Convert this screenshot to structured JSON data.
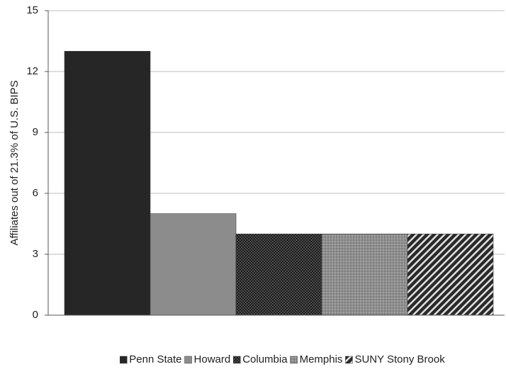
{
  "chart_data": {
    "type": "bar",
    "categories": [
      "Penn State",
      "Howard",
      "Columbia",
      "Memphis",
      "SUNY Stony Brook"
    ],
    "values": [
      13,
      5,
      4,
      4,
      4
    ],
    "title": "",
    "xlabel": "",
    "ylabel": "Affiliates out of 21.3% of U.S. BIPS",
    "ylim": [
      0,
      15
    ],
    "yticks": [
      0,
      3,
      6,
      9,
      12,
      15
    ],
    "grid": true,
    "legend_position": "bottom",
    "series_fills": [
      "solid-dark",
      "solid-gray",
      "dark-checker",
      "gray-dots",
      "diagonal-stripes"
    ],
    "colors": {
      "dark": "#262626",
      "gray": "#8c8c8c",
      "gridline": "#bdbdbd",
      "axis": "#555555"
    }
  }
}
